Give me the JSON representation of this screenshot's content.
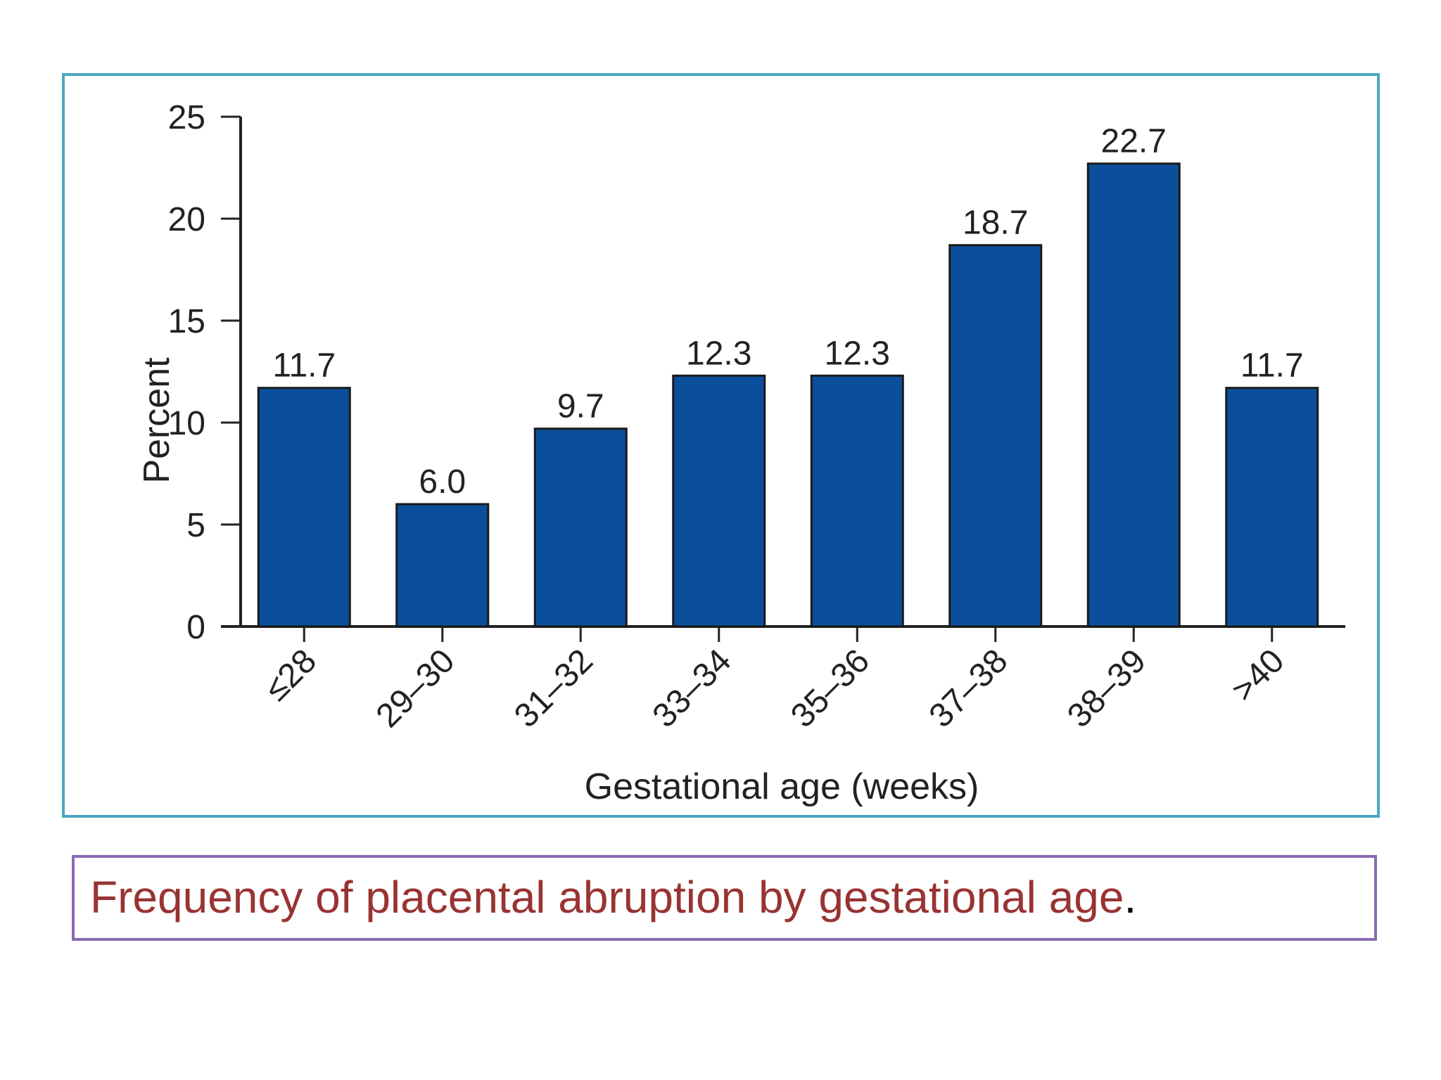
{
  "colors": {
    "bar": "#0b4f9c",
    "bar_edge": "#1a1a1a",
    "frame_border": "#4aa8c2",
    "caption_border": "#8a6bb0",
    "caption_text": "#993333"
  },
  "chart_data": {
    "type": "bar",
    "title": "",
    "xlabel": "Gestational age (weeks)",
    "ylabel": "Percent",
    "categories": [
      "≤28",
      "29–30",
      "31–32",
      "33–34",
      "35–36",
      "37–38",
      "38–39",
      ">40"
    ],
    "values": [
      11.7,
      6.0,
      9.7,
      12.3,
      12.3,
      18.7,
      22.7,
      11.7
    ],
    "value_labels": [
      "11.7",
      "6.0",
      "9.7",
      "12.3",
      "12.3",
      "18.7",
      "22.7",
      "11.7"
    ],
    "yticks": [
      0,
      5,
      10,
      15,
      20,
      25
    ],
    "ylim": [
      0,
      25
    ],
    "grid": false,
    "legend": "none"
  },
  "caption": {
    "text": "Frequency of placental abruption by gestational age",
    "end": "."
  }
}
